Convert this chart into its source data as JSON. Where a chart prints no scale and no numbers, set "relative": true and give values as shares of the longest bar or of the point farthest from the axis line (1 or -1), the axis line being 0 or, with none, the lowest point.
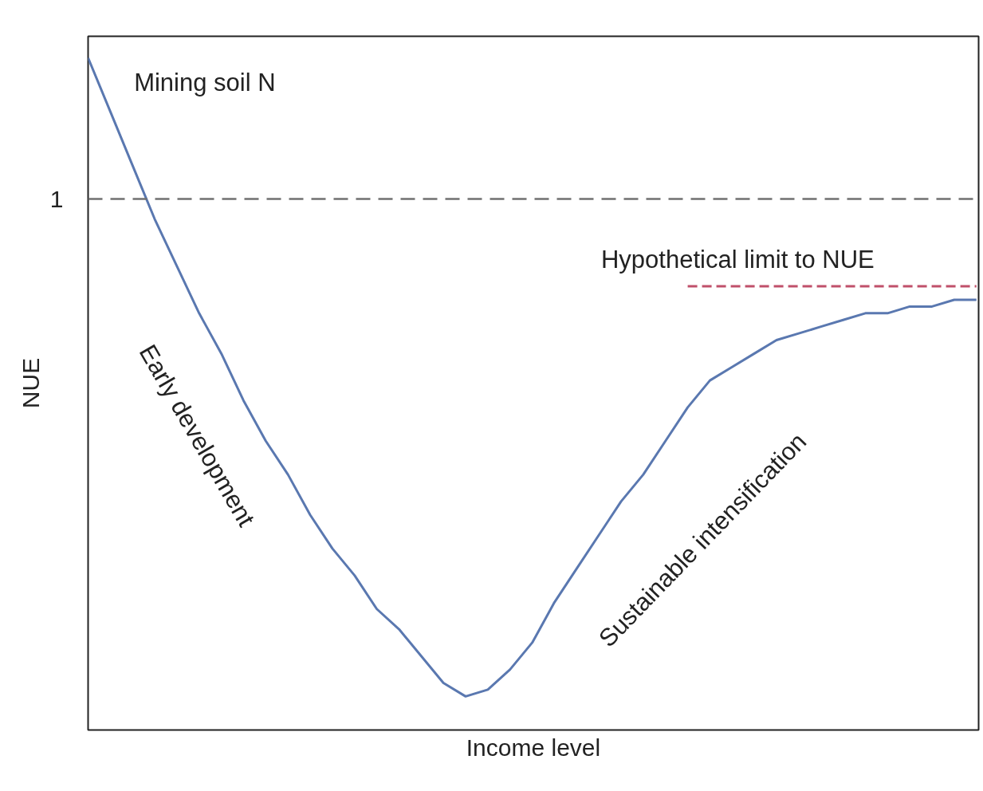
{
  "chart_data": {
    "type": "line",
    "relative": true,
    "xlabel": "Income level",
    "ylabel": "NUE",
    "categories": [
      null,
      null,
      null,
      null,
      null,
      null,
      null,
      null,
      null,
      null,
      null,
      null,
      null,
      null,
      null,
      null,
      null,
      null,
      null,
      null,
      null,
      null,
      null,
      null,
      null,
      null,
      null,
      null,
      null,
      null,
      null,
      null,
      null,
      null,
      null,
      null,
      null,
      null,
      null,
      null,
      null
    ],
    "series": [
      {
        "color": "#5a78b0",
        "values": [
          1.0,
          0.92,
          0.84,
          0.76,
          0.69,
          0.62,
          0.56,
          0.49,
          0.43,
          0.38,
          0.32,
          0.27,
          0.23,
          0.18,
          0.15,
          0.11,
          0.07,
          0.05,
          0.06,
          0.09,
          0.13,
          0.19,
          0.24,
          0.29,
          0.34,
          0.38,
          0.43,
          0.48,
          0.52,
          0.54,
          0.56,
          0.58,
          0.59,
          0.6,
          0.61,
          0.62,
          0.62,
          0.63,
          0.63,
          0.64,
          0.64
        ]
      },
      {
        "type": "line",
        "values": [
          null,
          null,
          null,
          null,
          null,
          null,
          null,
          null,
          null,
          null,
          null,
          null,
          null,
          null,
          null,
          null,
          null,
          null,
          null,
          null,
          null,
          null,
          null,
          null,
          null,
          null,
          null,
          0.66,
          0.66,
          0.66,
          0.66,
          0.66,
          0.66,
          0.66,
          0.66,
          0.66,
          0.66,
          0.66,
          0.66,
          0.66,
          0.66
        ],
        "color": "#c0506a",
        "line_style": "dashed"
      }
    ],
    "ref_lines": [
      {
        "axis": "y",
        "value": 0.79,
        "label": "1",
        "color": "#707070",
        "line_style": "dashed"
      }
    ],
    "annotations": [
      "Mining soil N",
      "Early development",
      "Sustainable intensification",
      "Hypothetical limit to NUE"
    ],
    "tick_labels": false,
    "marker": "none"
  }
}
